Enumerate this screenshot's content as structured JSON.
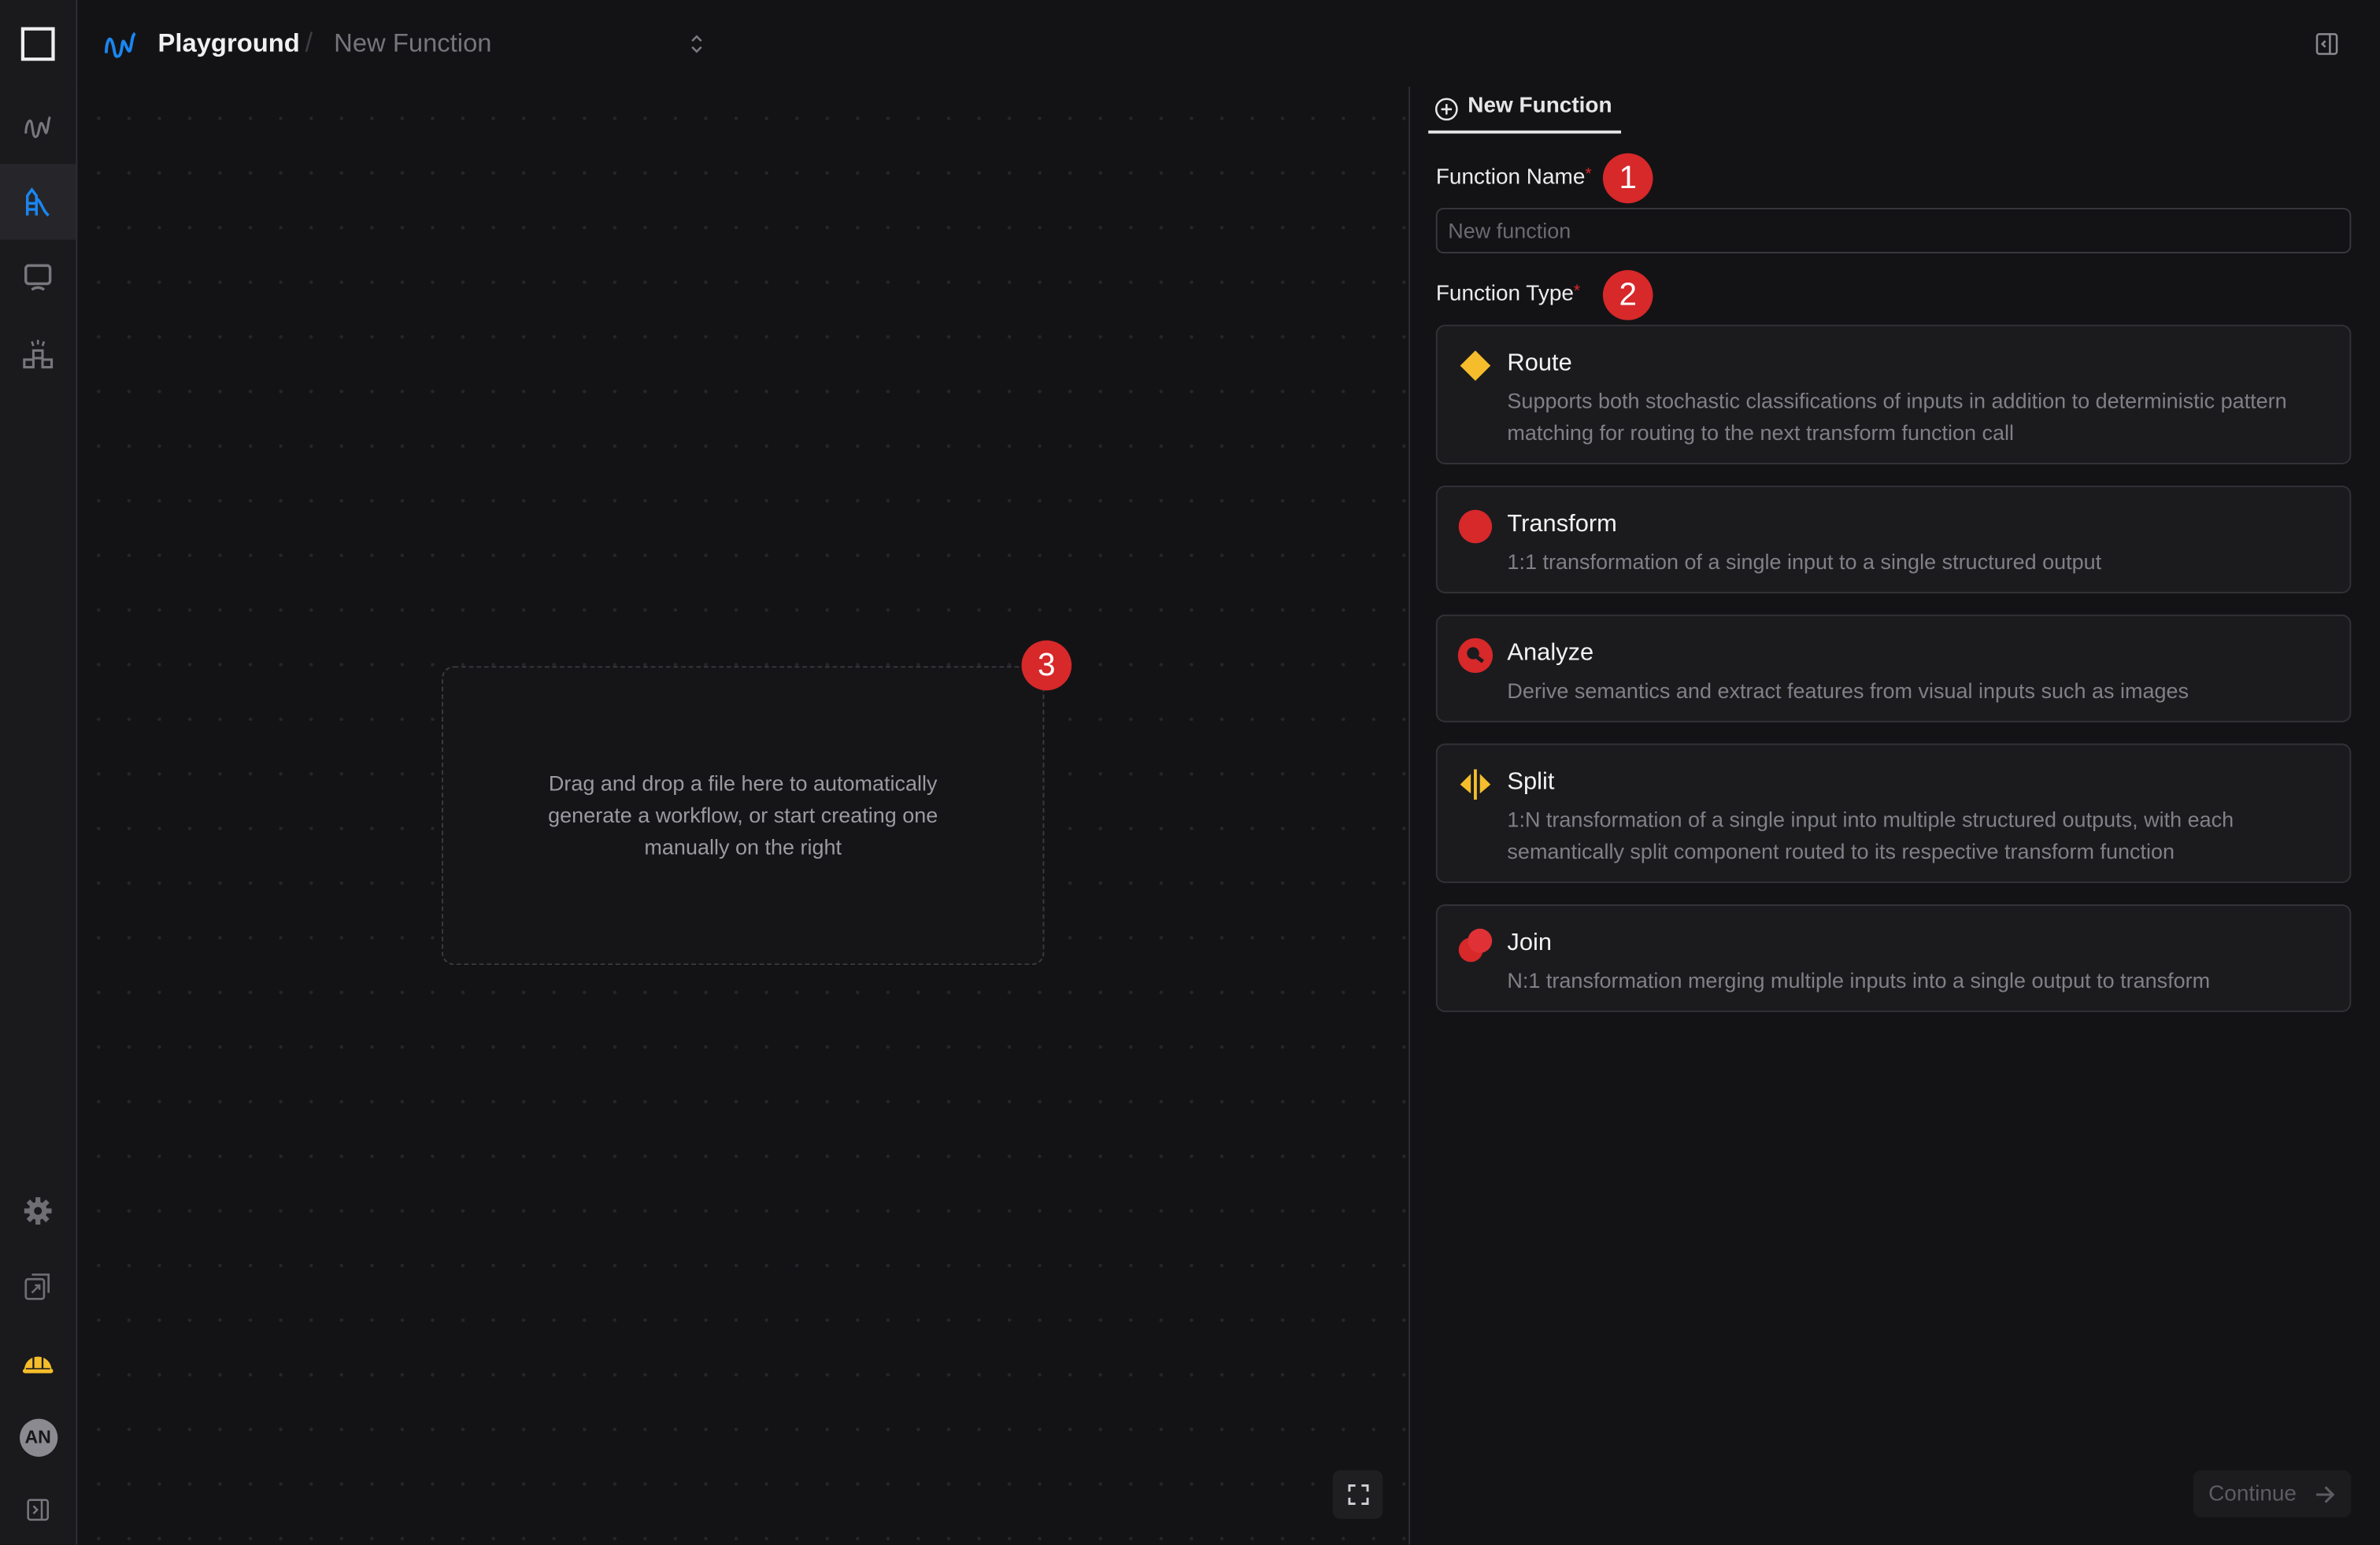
{
  "header": {
    "app_title": "Playground",
    "breadcrumb_current": "New Function"
  },
  "sidebar": {
    "top_items": [
      {
        "name": "workflows",
        "icon": "wave-icon"
      },
      {
        "name": "playground",
        "icon": "slide-icon",
        "active": true
      },
      {
        "name": "monitor",
        "icon": "monitor-icon"
      },
      {
        "name": "team",
        "icon": "team-icon"
      }
    ],
    "bottom_items": [
      {
        "name": "settings",
        "icon": "gear-icon"
      },
      {
        "name": "docs",
        "icon": "external-docs-icon"
      },
      {
        "name": "builder",
        "icon": "hard-hat-icon"
      }
    ],
    "avatar_initials": "AN"
  },
  "canvas": {
    "dropzone_text": "Drag and drop a file here to automatically generate a workflow, or start creating one manually on the right",
    "step_badge": "3"
  },
  "panel": {
    "tab_label": "New Function",
    "function_name_label": "Function Name",
    "function_name_badge": "1",
    "function_name_value": "",
    "function_name_placeholder": "New function",
    "function_type_label": "Function Type",
    "function_type_badge": "2",
    "required_mark": "*",
    "types": [
      {
        "title": "Route",
        "description": "Supports both stochastic classifications of inputs in addition to deterministic pattern matching for routing to the next transform function call",
        "icon": "diamond-icon",
        "color": "#f5bd2b"
      },
      {
        "title": "Transform",
        "description": "1:1 transformation of a single input to a single structured output",
        "icon": "circle-icon",
        "color": "#d7282a"
      },
      {
        "title": "Analyze",
        "description": "Derive semantics and extract features from visual inputs such as images",
        "icon": "magnifier-icon",
        "color": "#d7282a"
      },
      {
        "title": "Split",
        "description": "1:N transformation of a single input into multiple structured outputs, with each semantically split component routed to its respective transform function",
        "icon": "split-arrows-icon",
        "color": "#f5bd2b"
      },
      {
        "title": "Join",
        "description": "N:1 transformation merging multiple inputs into a single output to transform",
        "icon": "overlapping-circles-icon",
        "color": "#d7282a"
      }
    ],
    "continue_label": "Continue"
  },
  "colors": {
    "accent_blue": "#1a86f0",
    "badge_red": "#d7282a",
    "yellow": "#f5bd2b"
  }
}
